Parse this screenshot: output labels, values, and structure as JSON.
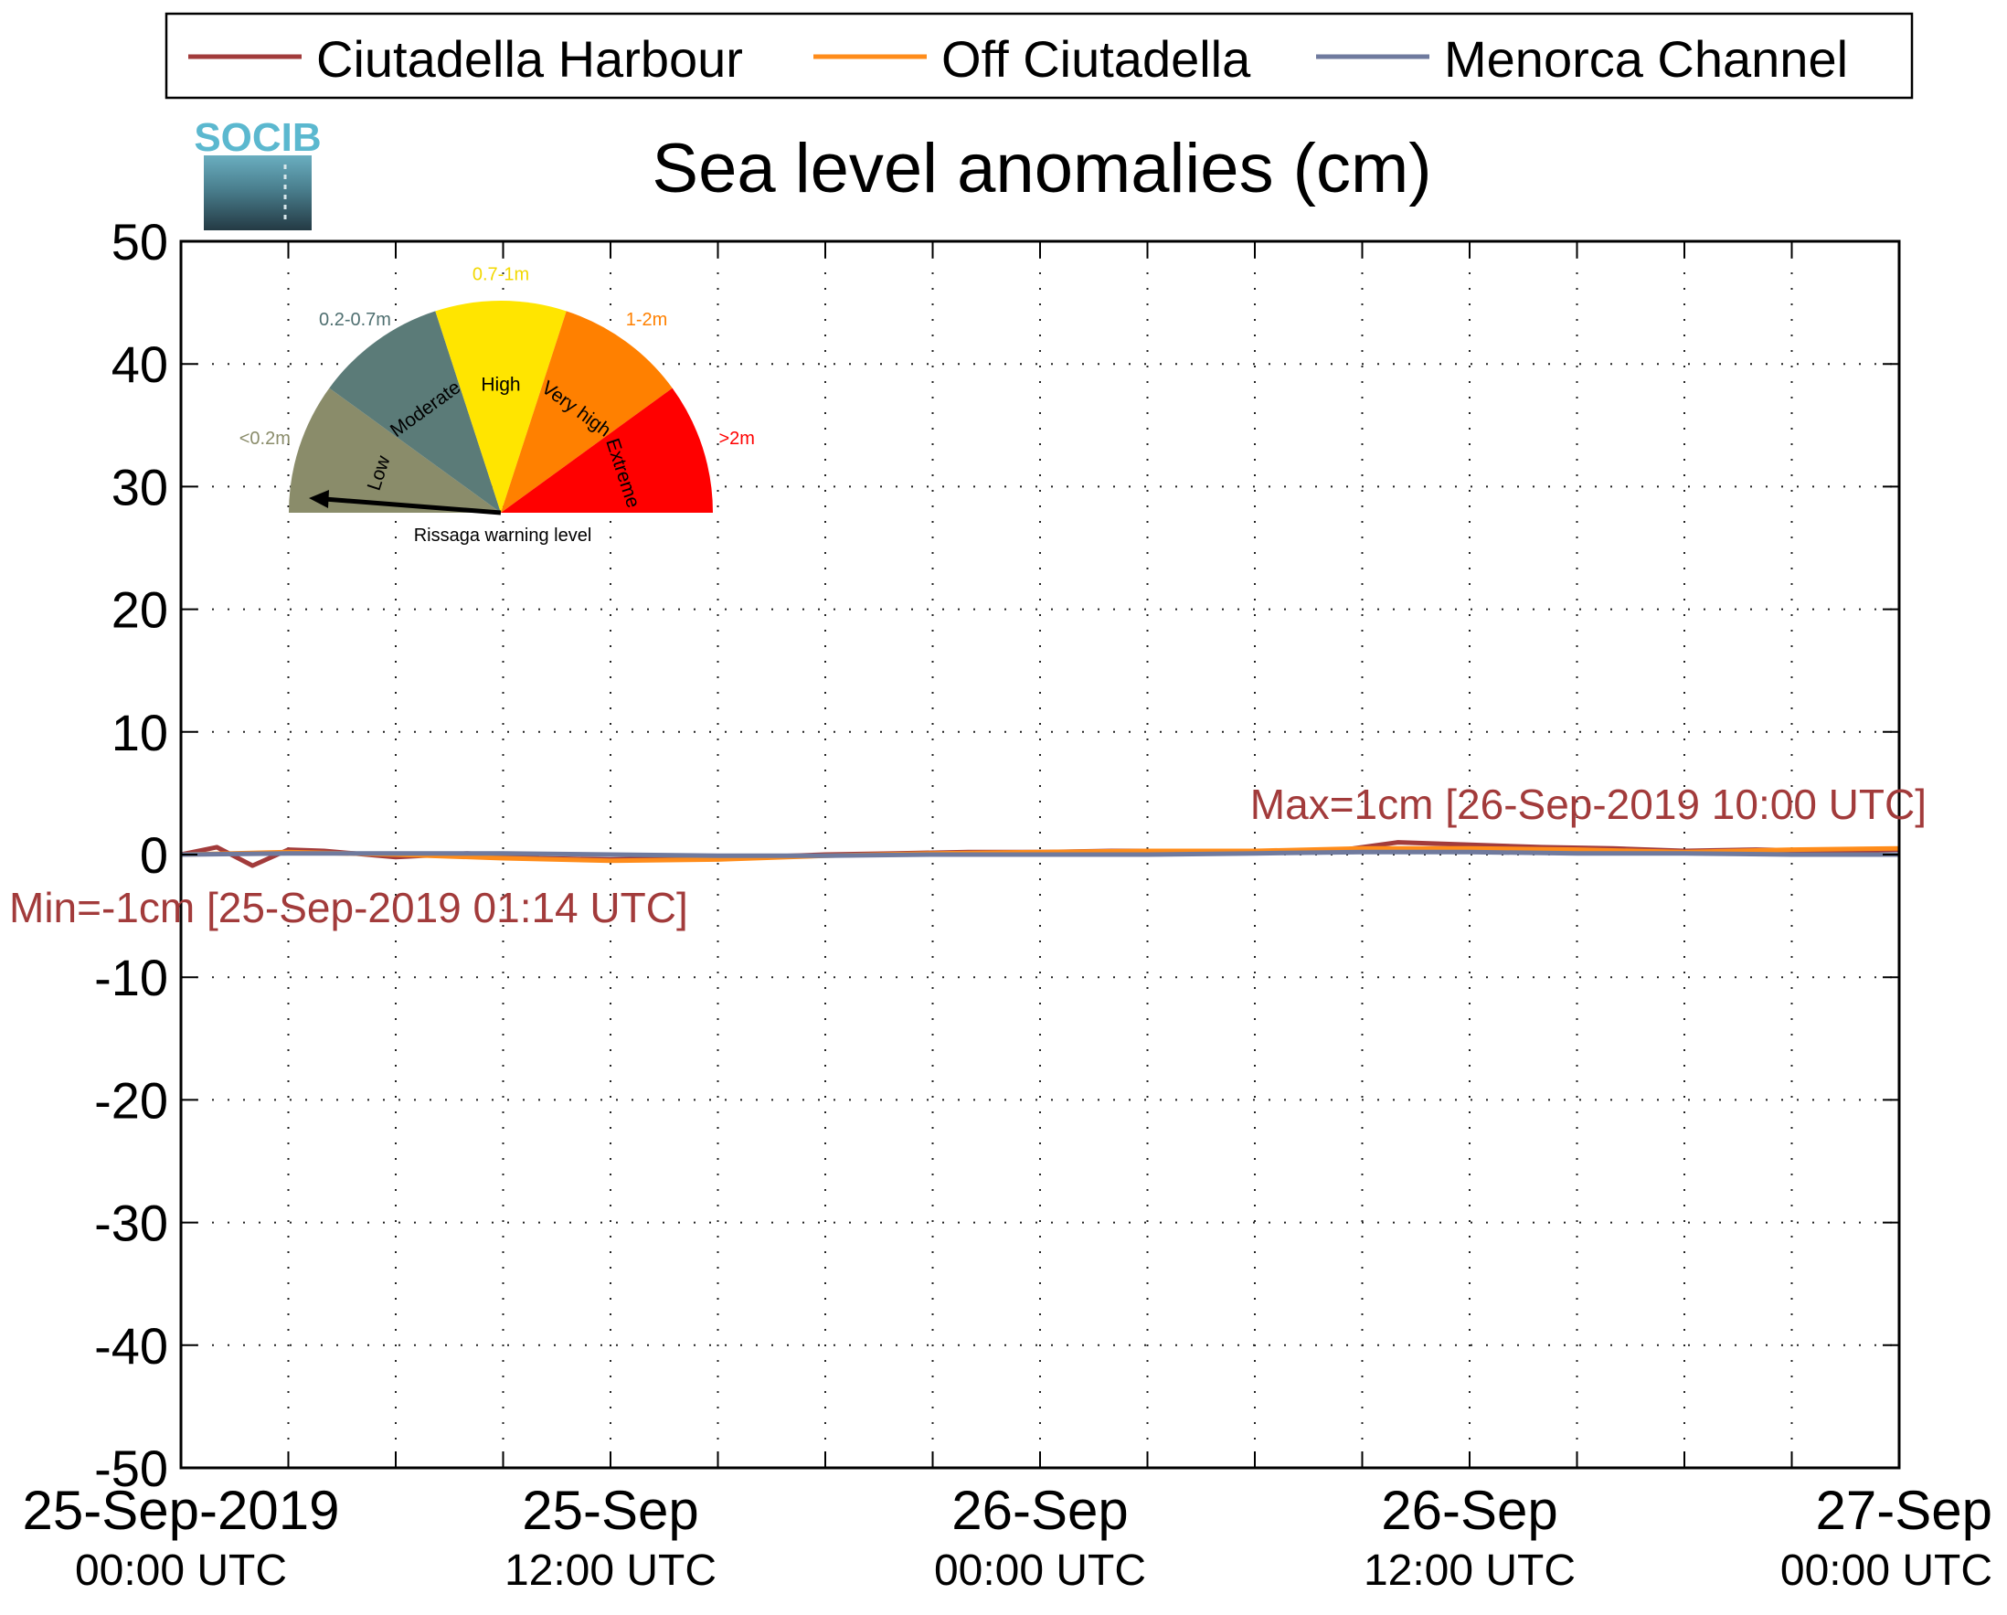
{
  "logo": {
    "text": "SOCIB",
    "colors": {
      "text": "#5bb8cf",
      "top": "#4aa8c0",
      "bottom": "#263d48"
    }
  },
  "legend": {
    "placement": "top-center"
  },
  "gauge": {
    "pointer_level": "Low",
    "caption": "Rissaga warning level",
    "sectors": [
      {
        "name": "Low",
        "range": "<0.2m",
        "color": "#8a8c6a"
      },
      {
        "name": "Moderate",
        "range": "0.2-0.7m",
        "color": "#5b7b78"
      },
      {
        "name": "High",
        "range": "0.7-1m",
        "color": "#ffe500"
      },
      {
        "name": "Very high",
        "range": "1-2m",
        "color": "#ff8000"
      },
      {
        "name": "Extreme",
        "range": ">2m",
        "color": "#ff0000"
      }
    ]
  },
  "chart_data": {
    "type": "line",
    "title": "Sea level anomalies (cm)",
    "xlabel": "",
    "ylabel": "",
    "ylim": [
      -50,
      50
    ],
    "yticks": [
      -50,
      -40,
      -30,
      -20,
      -10,
      0,
      10,
      20,
      30,
      40,
      50
    ],
    "xlim": [
      "2019-09-25 00:00",
      "2019-09-27 00:00"
    ],
    "x_tick_labels": [
      {
        "x": "2019-09-25 00:00",
        "line1": "25-Sep-2019",
        "line2": "00:00 UTC"
      },
      {
        "x": "2019-09-25 12:00",
        "line1": "25-Sep",
        "line2": "12:00 UTC"
      },
      {
        "x": "2019-09-26 00:00",
        "line1": "26-Sep",
        "line2": "00:00 UTC"
      },
      {
        "x": "2019-09-26 12:00",
        "line1": "26-Sep",
        "line2": "12:00 UTC"
      },
      {
        "x": "2019-09-27 00:00",
        "line1": "27-Sep",
        "line2": "00:00 UTC"
      }
    ],
    "x_minor_ticks": [
      "2019-09-25 03:00",
      "2019-09-25 06:00",
      "2019-09-25 09:00",
      "2019-09-25 12:00",
      "2019-09-25 15:00",
      "2019-09-25 18:00",
      "2019-09-25 21:00",
      "2019-09-26 00:00",
      "2019-09-26 03:00",
      "2019-09-26 06:00",
      "2019-09-26 09:00",
      "2019-09-26 12:00",
      "2019-09-26 15:00",
      "2019-09-26 18:00",
      "2019-09-26 21:00"
    ],
    "grid": true,
    "series": [
      {
        "name": "Ciutadella Harbour",
        "color": "#a23b3b",
        "x": [
          "2019-09-25 00:00",
          "2019-09-25 01:00",
          "2019-09-25 02:00",
          "2019-09-25 03:00",
          "2019-09-25 04:00",
          "2019-09-25 06:00",
          "2019-09-25 08:00",
          "2019-09-25 10:00",
          "2019-09-25 12:00",
          "2019-09-25 14:00",
          "2019-09-25 16:00",
          "2019-09-25 18:00",
          "2019-09-25 20:00",
          "2019-09-25 22:00",
          "2019-09-26 00:00",
          "2019-09-26 02:00",
          "2019-09-26 04:00",
          "2019-09-26 06:00",
          "2019-09-26 08:00",
          "2019-09-26 10:00",
          "2019-09-26 12:00",
          "2019-09-26 14:00",
          "2019-09-26 16:00",
          "2019-09-26 18:00",
          "2019-09-26 20:00",
          "2019-09-26 22:00",
          "2019-09-27 00:00"
        ],
        "values": [
          0,
          0.6,
          -0.9,
          0.4,
          0.3,
          -0.2,
          0.1,
          -0.3,
          -0.4,
          -0.3,
          -0.2,
          0,
          0.1,
          0.2,
          0.2,
          0.3,
          0.3,
          0.2,
          0.2,
          1,
          0.8,
          0.6,
          0.5,
          0.3,
          0.4,
          0.3,
          0.4
        ]
      },
      {
        "name": "Off Ciutadella",
        "color": "#ff8c1a",
        "x": [
          "2019-09-25 00:00",
          "2019-09-25 03:00",
          "2019-09-25 06:00",
          "2019-09-25 09:00",
          "2019-09-25 12:00",
          "2019-09-25 15:00",
          "2019-09-25 18:00",
          "2019-09-25 21:00",
          "2019-09-26 00:00",
          "2019-09-26 03:00",
          "2019-09-26 06:00",
          "2019-09-26 09:00",
          "2019-09-26 12:00",
          "2019-09-26 15:00",
          "2019-09-26 18:00",
          "2019-09-26 21:00",
          "2019-09-27 00:00"
        ],
        "values": [
          0,
          0.2,
          0,
          -0.3,
          -0.5,
          -0.4,
          -0.1,
          0.1,
          0.2,
          0.3,
          0.3,
          0.5,
          0.5,
          0.4,
          0.2,
          0.4,
          0.5
        ]
      },
      {
        "name": "Menorca Channel",
        "color": "#6f7a9e",
        "x": [
          "2019-09-25 00:00",
          "2019-09-25 03:00",
          "2019-09-25 06:00",
          "2019-09-25 09:00",
          "2019-09-25 12:00",
          "2019-09-25 15:00",
          "2019-09-25 18:00",
          "2019-09-25 21:00",
          "2019-09-26 00:00",
          "2019-09-26 03:00",
          "2019-09-26 06:00",
          "2019-09-26 09:00",
          "2019-09-26 12:00",
          "2019-09-26 15:00",
          "2019-09-26 18:00",
          "2019-09-26 21:00",
          "2019-09-27 00:00"
        ],
        "values": [
          0,
          0.1,
          0.1,
          0.1,
          0,
          -0.1,
          -0.1,
          0,
          0,
          0,
          0.1,
          0.2,
          0.2,
          0.1,
          0.1,
          0,
          0
        ]
      }
    ],
    "annotations": [
      {
        "kind": "max",
        "text": "Max=1cm [26-Sep-2019 10:00 UTC]",
        "color": "#a23b3b"
      },
      {
        "kind": "min",
        "text": "Min=-1cm [25-Sep-2019 01:14 UTC]",
        "color": "#a23b3b"
      }
    ]
  }
}
